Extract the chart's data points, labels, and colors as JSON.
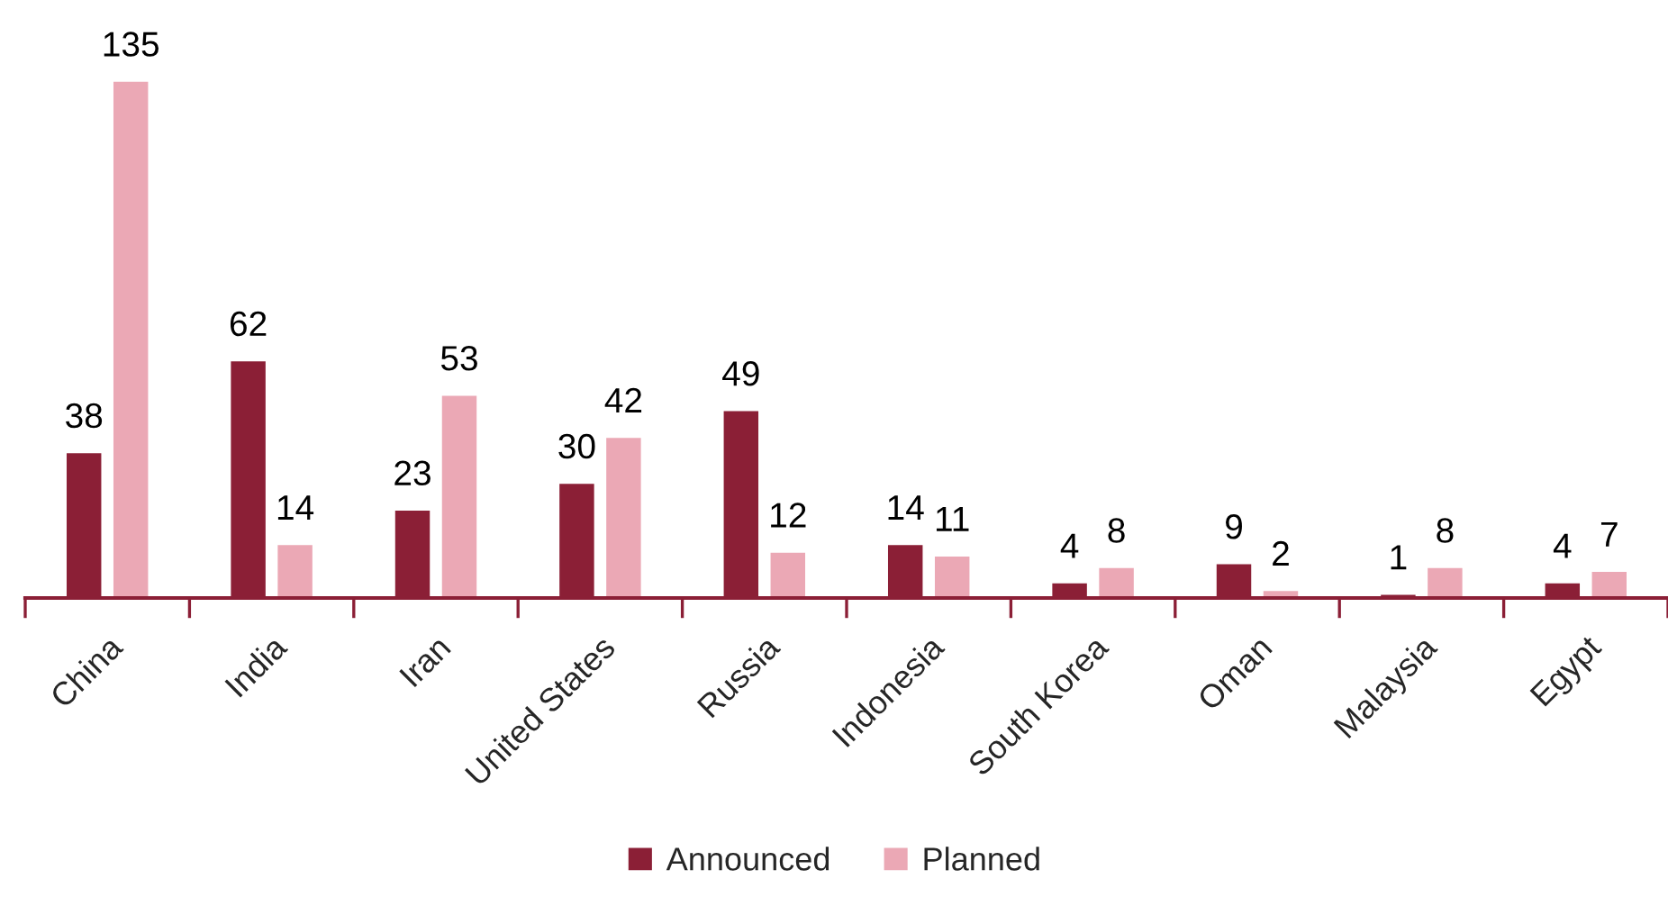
{
  "chart_data": {
    "type": "bar",
    "categories": [
      "China",
      "India",
      "Iran",
      "United States",
      "Russia",
      "Indonesia",
      "South Korea",
      "Oman",
      "Malaysia",
      "Egypt"
    ],
    "series": [
      {
        "name": "Announced",
        "color": "#8b1f36",
        "values": [
          38,
          62,
          23,
          30,
          49,
          14,
          4,
          9,
          1,
          4
        ]
      },
      {
        "name": "Planned",
        "color": "#eba8b5",
        "values": [
          135,
          14,
          53,
          42,
          12,
          11,
          8,
          2,
          8,
          7
        ]
      }
    ],
    "data_labels": true,
    "legend": "bottom"
  }
}
